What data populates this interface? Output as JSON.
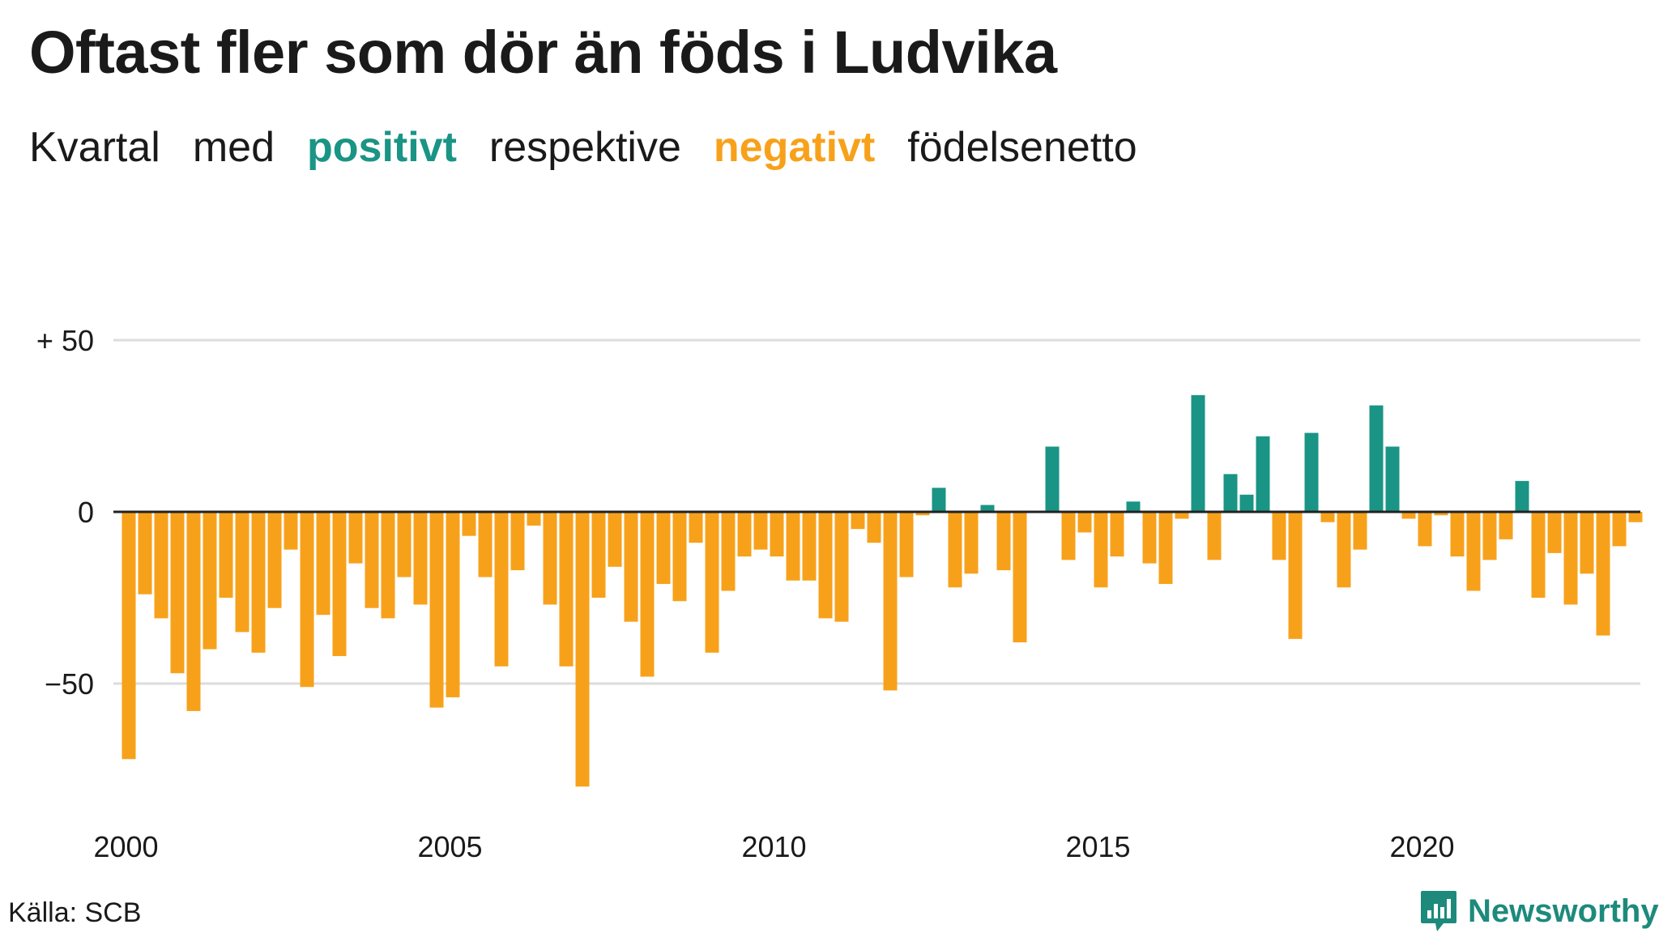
{
  "title": "Oftast fler som dör än föds i Ludvika",
  "subtitle": {
    "part1": "Kvartal",
    "part2": "med",
    "positive_word": "positivt",
    "part3": "respektive",
    "negative_word": "negativt",
    "part4": "födelsenetto"
  },
  "source": "Källa: SCB",
  "brand": "Newsworthy",
  "colors": {
    "positive": "#1a9485",
    "negative": "#f7a11b",
    "grid": "#dcdcdc",
    "axis": "#222222"
  },
  "chart_data": {
    "type": "bar",
    "x_start": "2000 Q1",
    "ylim": [
      -82,
      52
    ],
    "y_ticks": [
      {
        "value": 50,
        "label": "+ 50"
      },
      {
        "value": 0,
        "label": "0"
      },
      {
        "value": -50,
        "label": "−50"
      }
    ],
    "x_ticks": [
      "2000",
      "2005",
      "2010",
      "2015",
      "2020"
    ],
    "grid": true,
    "values": [
      -72,
      -24,
      -31,
      -47,
      -58,
      -40,
      -25,
      -35,
      -41,
      -28,
      -11,
      -51,
      -30,
      -42,
      -15,
      -28,
      -31,
      -19,
      -27,
      -57,
      -54,
      -7,
      -19,
      -45,
      -17,
      -4,
      -27,
      -45,
      -80,
      -25,
      -16,
      -32,
      -48,
      -21,
      -26,
      -9,
      -41,
      -23,
      -13,
      -11,
      -13,
      -20,
      -20,
      -31,
      -32,
      -5,
      -9,
      -52,
      -19,
      -1,
      7,
      -22,
      -18,
      2,
      -17,
      -38,
      0,
      19,
      -14,
      -6,
      -22,
      -13,
      3,
      -15,
      -21,
      -2,
      34,
      -14,
      11,
      5,
      22,
      -14,
      -37,
      23,
      -3,
      -22,
      -11,
      31,
      19,
      -2,
      -10,
      -1,
      -13,
      -23,
      -14,
      -8,
      9,
      -25,
      -12,
      -27,
      -18,
      -36,
      -10,
      -3
    ]
  }
}
